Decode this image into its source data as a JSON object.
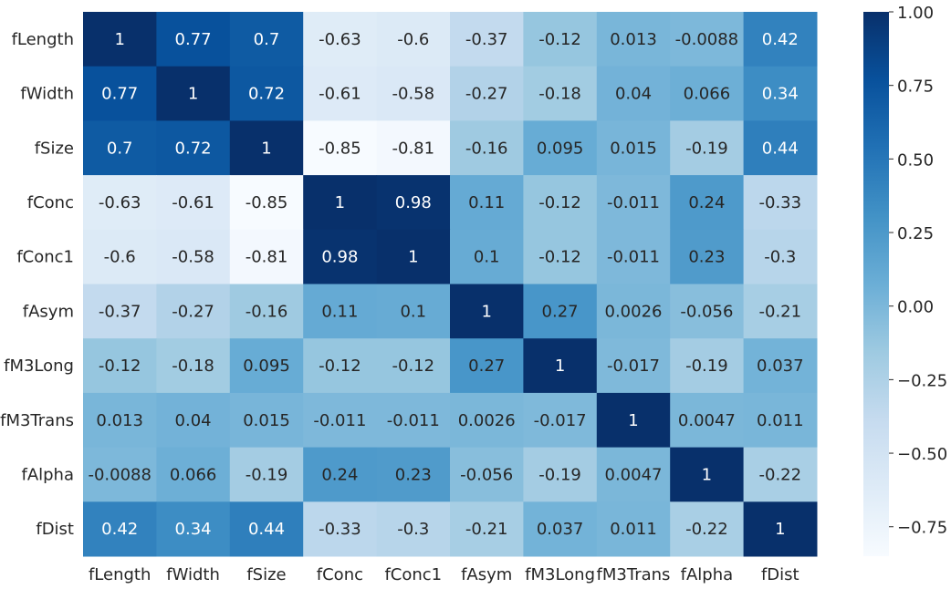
{
  "chart_data": {
    "type": "heatmap",
    "title": "",
    "xlabel": "",
    "ylabel": "",
    "x": [
      "fLength",
      "fWidth",
      "fSize",
      "fConc",
      "fConc1",
      "fAsym",
      "fM3Long",
      "fM3Trans",
      "fAlpha",
      "fDist"
    ],
    "y": [
      "fLength",
      "fWidth",
      "fSize",
      "fConc",
      "fConc1",
      "fAsym",
      "fM3Long",
      "fM3Trans",
      "fAlpha",
      "fDist"
    ],
    "values": [
      [
        1,
        0.77,
        0.7,
        -0.63,
        -0.6,
        -0.37,
        -0.12,
        0.013,
        -0.0088,
        0.42
      ],
      [
        0.77,
        1,
        0.72,
        -0.61,
        -0.58,
        -0.27,
        -0.18,
        0.04,
        0.066,
        0.34
      ],
      [
        0.7,
        0.72,
        1,
        -0.85,
        -0.81,
        -0.16,
        0.095,
        0.015,
        -0.19,
        0.44
      ],
      [
        -0.63,
        -0.61,
        -0.85,
        1,
        0.98,
        0.11,
        -0.12,
        -0.011,
        0.24,
        -0.33
      ],
      [
        -0.6,
        -0.58,
        -0.81,
        0.98,
        1,
        0.1,
        -0.12,
        -0.011,
        0.23,
        -0.3
      ],
      [
        -0.37,
        -0.27,
        -0.16,
        0.11,
        0.1,
        1,
        0.27,
        0.0026,
        -0.056,
        -0.21
      ],
      [
        -0.12,
        -0.18,
        0.095,
        -0.12,
        -0.12,
        0.27,
        1,
        -0.017,
        -0.19,
        0.037
      ],
      [
        0.013,
        0.04,
        0.015,
        -0.011,
        -0.011,
        0.0026,
        -0.017,
        1,
        0.0047,
        0.011
      ],
      [
        -0.0088,
        0.066,
        -0.19,
        0.24,
        0.23,
        -0.056,
        -0.19,
        0.0047,
        1,
        -0.22
      ],
      [
        0.42,
        0.34,
        0.44,
        -0.33,
        -0.3,
        -0.21,
        0.037,
        0.011,
        -0.22,
        1
      ]
    ],
    "value_labels": [
      [
        "1",
        "0.77",
        "0.7",
        "-0.63",
        "-0.6",
        "-0.37",
        "-0.12",
        "0.013",
        "-0.0088",
        "0.42"
      ],
      [
        "0.77",
        "1",
        "0.72",
        "-0.61",
        "-0.58",
        "-0.27",
        "-0.18",
        "0.04",
        "0.066",
        "0.34"
      ],
      [
        "0.7",
        "0.72",
        "1",
        "-0.85",
        "-0.81",
        "-0.16",
        "0.095",
        "0.015",
        "-0.19",
        "0.44"
      ],
      [
        "-0.63",
        "-0.61",
        "-0.85",
        "1",
        "0.98",
        "0.11",
        "-0.12",
        "-0.011",
        "0.24",
        "-0.33"
      ],
      [
        "-0.6",
        "-0.58",
        "-0.81",
        "0.98",
        "1",
        "0.1",
        "-0.12",
        "-0.011",
        "0.23",
        "-0.3"
      ],
      [
        "-0.37",
        "-0.27",
        "-0.16",
        "0.11",
        "0.1",
        "1",
        "0.27",
        "0.0026",
        "-0.056",
        "-0.21"
      ],
      [
        "-0.12",
        "-0.18",
        "0.095",
        "-0.12",
        "-0.12",
        "0.27",
        "1",
        "-0.017",
        "-0.19",
        "0.037"
      ],
      [
        "0.013",
        "0.04",
        "0.015",
        "-0.011",
        "-0.011",
        "0.0026",
        "-0.017",
        "1",
        "0.0047",
        "0.011"
      ],
      [
        "-0.0088",
        "0.066",
        "-0.19",
        "0.24",
        "0.23",
        "-0.056",
        "-0.19",
        "0.0047",
        "1",
        "-0.22"
      ],
      [
        "0.42",
        "0.34",
        "0.44",
        "-0.33",
        "-0.3",
        "-0.21",
        "0.037",
        "0.011",
        "-0.22",
        "1"
      ]
    ],
    "colorbar": {
      "range": [
        -0.85,
        1.0
      ],
      "ticks": [
        1.0,
        0.75,
        0.5,
        0.25,
        0.0,
        -0.25,
        -0.5,
        -0.75
      ],
      "tick_labels": [
        "1.00",
        "0.75",
        "0.50",
        "0.25",
        "0.00",
        "−0.25",
        "−0.50",
        "−0.75"
      ],
      "colormap": "Blues",
      "colors": [
        "#f7fbff",
        "#deebf7",
        "#c6dbef",
        "#9ecae1",
        "#6baed6",
        "#4292c6",
        "#2171b5",
        "#08519c",
        "#08306b"
      ]
    },
    "grid": false,
    "legend": "right"
  }
}
